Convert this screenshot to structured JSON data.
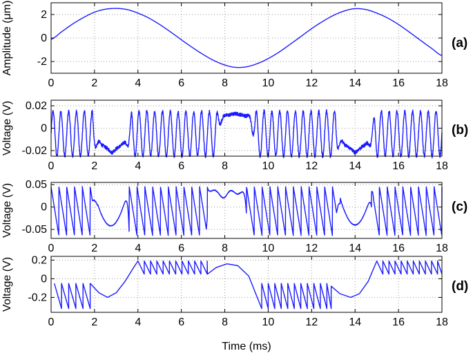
{
  "chart_data": [
    {
      "type": "line",
      "panel_label": "(a)",
      "ylabel": "Amplitude (μm)",
      "xlabel": "",
      "xlim": [
        0,
        18
      ],
      "ylim": [
        -3,
        3
      ],
      "x_ticks": [
        "0",
        "2",
        "4",
        "6",
        "8",
        "10",
        "12",
        "14",
        "16",
        "18"
      ],
      "y_ticks": [
        "2",
        "0",
        "-2"
      ],
      "y_tick_values": [
        2,
        0,
        -2
      ],
      "grid": true,
      "color": "#1a1aff",
      "series": [
        {
          "x": [
            0,
            0.5,
            1,
            1.5,
            2,
            2.5,
            3,
            3.5,
            4,
            4.5,
            5,
            5.5,
            6,
            6.5,
            7,
            7.5,
            8,
            8.5,
            9,
            9.5,
            10,
            10.5,
            11,
            11.5,
            12,
            12.5,
            13,
            13.5,
            14,
            14.5,
            15,
            15.5,
            16,
            16.5,
            17,
            17.5,
            18
          ],
          "values": [
            -0.12,
            0.55,
            1.2,
            1.75,
            2.2,
            2.45,
            2.52,
            2.42,
            2.12,
            1.7,
            1.15,
            0.52,
            -0.15,
            -0.8,
            -1.4,
            -1.92,
            -2.3,
            -2.5,
            -2.45,
            -2.18,
            -1.75,
            -1.2,
            -0.55,
            0.12,
            0.8,
            1.4,
            1.92,
            2.3,
            2.5,
            2.42,
            2.12,
            1.7,
            1.15,
            0.5,
            -0.18,
            -0.85,
            -1.5
          ]
        }
      ]
    },
    {
      "type": "line",
      "panel_label": "(b)",
      "ylabel": "Voltage (V)",
      "xlabel": "",
      "xlim": [
        0,
        18
      ],
      "ylim": [
        -0.025,
        0.025
      ],
      "x_ticks": [
        "0",
        "2",
        "4",
        "6",
        "8",
        "10",
        "12",
        "14",
        "16",
        "18"
      ],
      "y_ticks": [
        "0.02",
        "0",
        "-0.02"
      ],
      "y_tick_values": [
        0.02,
        0,
        -0.02
      ],
      "grid": true,
      "color": "#1a1aff",
      "signal": {
        "kind": "fringes",
        "fringe_period_ms": 0.36,
        "amplitude": 0.02,
        "offset": -0.005,
        "noise": 0.0016,
        "flat_regions": [
          {
            "center": 2.8,
            "half_width": 0.9,
            "level": -0.022,
            "bump": 0.018
          },
          {
            "center": 8.5,
            "half_width": 0.9,
            "level": 0.013,
            "bump": 0.004
          },
          {
            "center": 14.0,
            "half_width": 0.9,
            "level": -0.022,
            "bump": 0.018
          }
        ]
      }
    },
    {
      "type": "line",
      "panel_label": "(c)",
      "ylabel": "Voltage (V)",
      "xlabel": "",
      "xlim": [
        0,
        18
      ],
      "ylim": [
        -0.07,
        0.055
      ],
      "x_ticks": [
        "0",
        "2",
        "4",
        "6",
        "8",
        "10",
        "12",
        "14",
        "16",
        "18"
      ],
      "y_ticks": [
        "0.05",
        "0",
        "-0.05"
      ],
      "y_tick_values": [
        0.05,
        0,
        -0.05
      ],
      "grid": true,
      "color": "#1a1aff",
      "signal": {
        "kind": "sawtooth",
        "period_ms": 0.36,
        "high": 0.045,
        "low": -0.065,
        "noise": 0.0008,
        "flat_regions": [
          {
            "center": 2.75,
            "half_width": 0.85,
            "level": -0.042,
            "edge": 0.042
          },
          {
            "center": 8.1,
            "half_width": 0.95,
            "level": 0.028,
            "edge": 0.045
          },
          {
            "center": 14.0,
            "half_width": 0.85,
            "level": -0.04,
            "edge": 0.042
          }
        ]
      }
    },
    {
      "type": "line",
      "panel_label": "(d)",
      "ylabel": "Voltage (V)",
      "xlabel": "Time (ms)",
      "xlim": [
        0,
        18
      ],
      "ylim": [
        -0.36,
        0.24
      ],
      "x_ticks": [
        "0",
        "2",
        "4",
        "6",
        "8",
        "10",
        "12",
        "14",
        "16",
        "18"
      ],
      "y_ticks": [
        "0.2",
        "0",
        "-0.2"
      ],
      "y_tick_values": [
        0.2,
        0,
        -0.2
      ],
      "grid": true,
      "color": "#1a1aff",
      "segments": [
        {
          "kind": "saw",
          "x0": 0.15,
          "x1": 1.8,
          "period": 0.33,
          "low": -0.32,
          "high": -0.05
        },
        {
          "kind": "curve",
          "points": [
            [
              1.8,
              -0.05
            ],
            [
              2.2,
              -0.15
            ],
            [
              2.6,
              -0.2
            ],
            [
              3.0,
              -0.15
            ],
            [
              3.4,
              -0.03
            ],
            [
              3.8,
              0.12
            ],
            [
              4.0,
              0.19
            ]
          ]
        },
        {
          "kind": "saw",
          "x0": 4.0,
          "x1": 7.2,
          "period": 0.29,
          "low": 0.05,
          "high": 0.19
        },
        {
          "kind": "curve",
          "points": [
            [
              7.2,
              0.05
            ],
            [
              7.6,
              0.12
            ],
            [
              8.1,
              0.16
            ],
            [
              8.6,
              0.14
            ],
            [
              9.1,
              0.03
            ],
            [
              9.7,
              -0.32
            ]
          ]
        },
        {
          "kind": "saw",
          "x0": 9.7,
          "x1": 12.9,
          "period": 0.3,
          "low": -0.32,
          "high": -0.05
        },
        {
          "kind": "curve",
          "points": [
            [
              12.9,
              -0.08
            ],
            [
              13.3,
              -0.16
            ],
            [
              13.8,
              -0.2
            ],
            [
              14.2,
              -0.16
            ],
            [
              14.6,
              -0.03
            ],
            [
              15.0,
              0.19
            ]
          ]
        },
        {
          "kind": "saw",
          "x0": 15.0,
          "x1": 18.0,
          "period": 0.28,
          "low": 0.05,
          "high": 0.19
        }
      ]
    }
  ]
}
